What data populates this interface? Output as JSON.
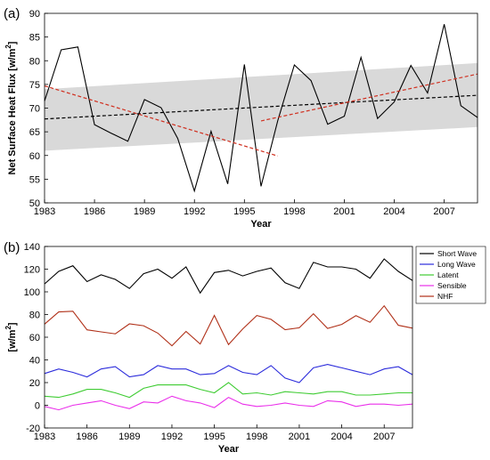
{
  "chart_data": [
    {
      "panel_label": "(a)",
      "type": "line",
      "xlabel": "Year",
      "ylabel": "Net Surface Heat Flux [w/m",
      "ylabel_sup": "2",
      "ylabel_end": "]",
      "xlim": [
        1983,
        2009
      ],
      "ylim": [
        50,
        90
      ],
      "xticks": [
        1983,
        1986,
        1989,
        1992,
        1995,
        1998,
        2001,
        2004,
        2007
      ],
      "yticks": [
        50,
        55,
        60,
        65,
        70,
        75,
        80,
        85,
        90
      ],
      "grid": false,
      "band": {
        "x": [
          1983,
          2009
        ],
        "lower": [
          61,
          66
        ],
        "upper": [
          74,
          79.5
        ],
        "color": "#d9d9d9"
      },
      "series": [
        {
          "color": "#000000",
          "style": "solid",
          "x": [
            1983,
            1984,
            1985,
            1986,
            1987,
            1988,
            1989,
            1990,
            1991,
            1992,
            1993,
            1994,
            1995,
            1996,
            1997,
            1998,
            1999,
            2000,
            2001,
            2002,
            2003,
            2004,
            2005,
            2006,
            2007,
            2008,
            2009
          ],
          "values": [
            71.5,
            82.3,
            82.9,
            66.5,
            64.7,
            63.0,
            71.8,
            70.1,
            63.6,
            52.5,
            65.1,
            54.0,
            79.2,
            53.5,
            67.3,
            79.1,
            75.8,
            66.6,
            68.3,
            80.7,
            67.8,
            71.3,
            79.0,
            73.2,
            87.7,
            70.5,
            68.0
          ]
        },
        {
          "color": "#000000",
          "style": "dashed",
          "x": [
            1983,
            2009
          ],
          "values": [
            67.7,
            72.7
          ]
        },
        {
          "color": "#d03020",
          "style": "dashed",
          "x": [
            1983,
            1997
          ],
          "values": [
            74.7,
            59.9
          ]
        },
        {
          "color": "#d03020",
          "style": "dashed",
          "x": [
            1996,
            2009
          ],
          "values": [
            67.3,
            77.2
          ]
        }
      ]
    },
    {
      "panel_label": "(b)",
      "type": "line",
      "xlabel": "Year",
      "ylabel": "[w/m",
      "ylabel_sup": "2",
      "ylabel_end": "]",
      "xlim": [
        1983,
        2009
      ],
      "ylim": [
        -20,
        140
      ],
      "xticks": [
        1983,
        1986,
        1989,
        1992,
        1995,
        1998,
        2001,
        2004,
        2007
      ],
      "yticks": [
        -20,
        0,
        20,
        40,
        60,
        80,
        100,
        120,
        140
      ],
      "grid": false,
      "legend_position": "top-right outside",
      "x": [
        1983,
        1984,
        1985,
        1986,
        1987,
        1988,
        1989,
        1990,
        1991,
        1992,
        1993,
        1994,
        1995,
        1996,
        1997,
        1998,
        1999,
        2000,
        2001,
        2002,
        2003,
        2004,
        2005,
        2006,
        2007,
        2008,
        2009
      ],
      "series": [
        {
          "name": "Short Wave",
          "color": "#000000",
          "values": [
            107,
            118,
            123,
            109,
            115,
            111,
            103,
            116,
            120,
            112,
            122,
            99,
            117,
            119,
            114,
            118,
            121,
            108,
            103,
            126,
            122,
            122,
            120,
            112,
            129,
            118,
            110
          ]
        },
        {
          "name": "Long Wave",
          "color": "#2b2bdb",
          "values": [
            28,
            32,
            29,
            25,
            32,
            34,
            25,
            27,
            35,
            32,
            32,
            27,
            28,
            35,
            29,
            27,
            35,
            24,
            20,
            33,
            36,
            33,
            30,
            27,
            32,
            34,
            27
          ]
        },
        {
          "name": "Latent",
          "color": "#3fcc33",
          "values": [
            8,
            7,
            10,
            14,
            14,
            11,
            7,
            15,
            18,
            18,
            18,
            14,
            11,
            20,
            10,
            11,
            9,
            12,
            11,
            10,
            12,
            12,
            9,
            9,
            10,
            11,
            11
          ]
        },
        {
          "name": "Sensible",
          "color": "#ea2fea",
          "values": [
            -1,
            -4,
            0,
            2,
            4,
            0,
            -3,
            3,
            2,
            8,
            4,
            2,
            -2,
            7,
            1,
            -1,
            0,
            2,
            0,
            -1,
            4,
            3,
            -1,
            1,
            1,
            0,
            1
          ]
        },
        {
          "name": "NHF",
          "color": "#b03018",
          "values": [
            71.5,
            82.3,
            82.9,
            66.5,
            64.7,
            63.0,
            71.8,
            70.1,
            63.6,
            52.5,
            65.1,
            54.0,
            79.2,
            53.5,
            67.3,
            79.1,
            75.8,
            66.6,
            68.3,
            80.7,
            67.8,
            71.3,
            79.0,
            73.2,
            87.7,
            70.5,
            68.0
          ]
        }
      ]
    }
  ]
}
